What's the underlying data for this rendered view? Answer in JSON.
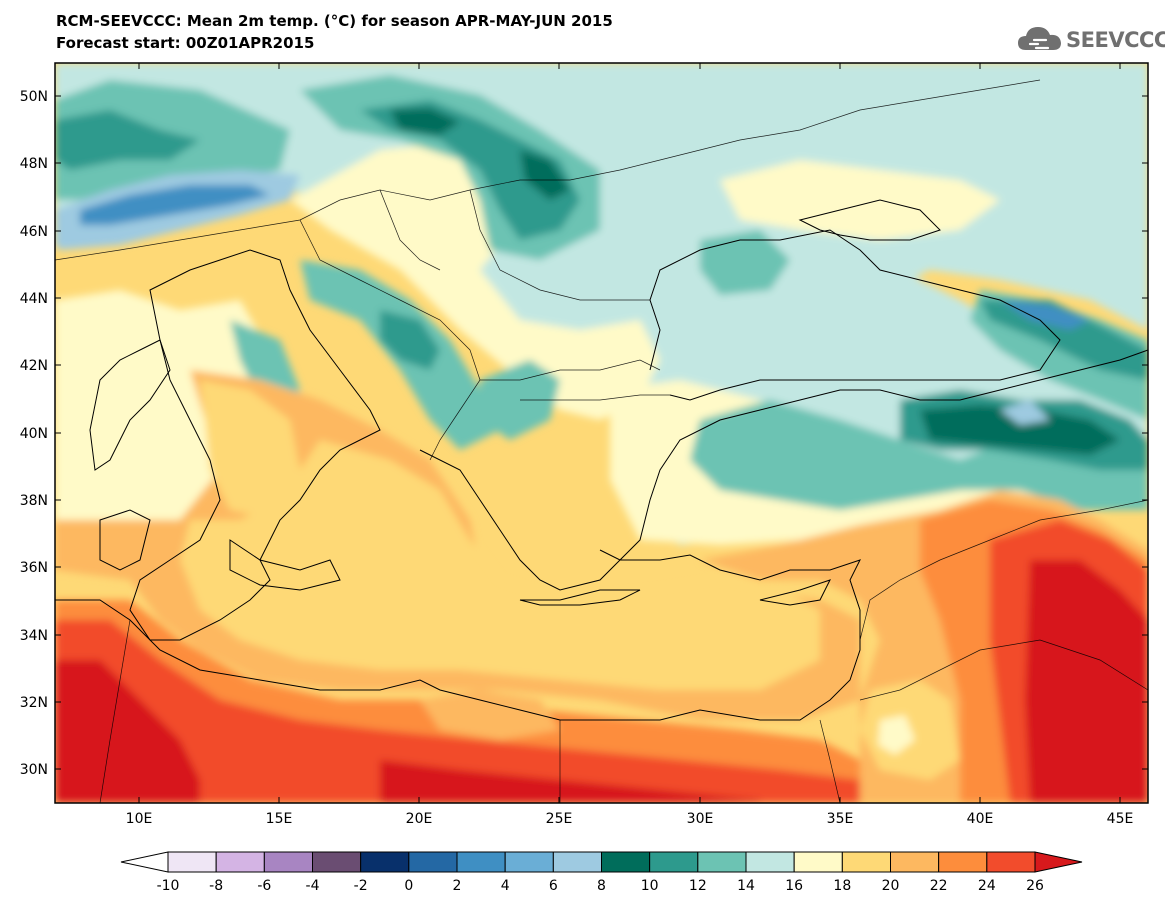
{
  "header": {
    "title_line_1": "RCM-SEEVCCC: Mean 2m temp. (°C) for season APR-MAY-JUN 2015",
    "title_line_2": "Forecast start: 00Z01APR2015"
  },
  "logo": {
    "text": "SEEVCCC",
    "icon": "cloud-icon"
  },
  "map": {
    "variable": "Mean 2m temperature",
    "unit": "°C",
    "region": "Eastern Mediterranean / Balkans / Black Sea",
    "lon_range": [
      7,
      46
    ],
    "lat_range": [
      29,
      51
    ],
    "lat_ticks": [
      "30N",
      "32N",
      "34N",
      "36N",
      "38N",
      "40N",
      "42N",
      "44N",
      "46N",
      "48N",
      "50N"
    ],
    "lon_ticks": [
      "10E",
      "15E",
      "20E",
      "25E",
      "30E",
      "35E",
      "40E",
      "45E"
    ]
  },
  "colorbar": {
    "labels": [
      "-10",
      "-8",
      "-6",
      "-4",
      "-2",
      "0",
      "2",
      "4",
      "6",
      "8",
      "10",
      "12",
      "14",
      "16",
      "18",
      "20",
      "22",
      "24",
      "26"
    ],
    "colors": [
      "#efe6f5",
      "#d4b4e4",
      "#a885c2",
      "#6a4d72",
      "#08306b",
      "#2468a4",
      "#3f8fc3",
      "#6aaed6",
      "#9ecae1",
      "#006d5b",
      "#2d9a8d",
      "#6cc3b3",
      "#c2e7e2",
      "#fffac8",
      "#fed976",
      "#fdb860",
      "#fd8d3c",
      "#f24c2c"
    ],
    "under_color": "#ffffff",
    "over_color": "#d7191c"
  }
}
